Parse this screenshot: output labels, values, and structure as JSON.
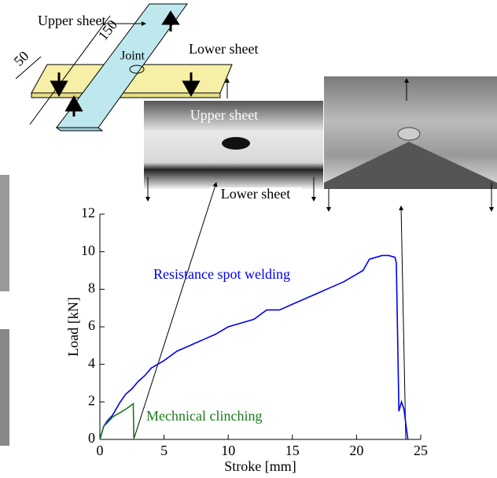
{
  "chart_data": {
    "type": "line",
    "xlabel": "Stroke [mm]",
    "ylabel": "Load [kN]",
    "xlim": [
      0,
      25
    ],
    "ylim": [
      0,
      12
    ],
    "xticks": [
      0,
      5,
      10,
      15,
      20,
      25
    ],
    "yticks": [
      0,
      2,
      4,
      6,
      8,
      10,
      12
    ],
    "series": [
      {
        "name": "Resistance spot welding",
        "color": "#0000ee",
        "x": [
          0,
          0.3,
          0.6,
          1,
          1.5,
          2,
          2.5,
          3,
          3.5,
          4,
          5,
          6,
          7,
          8,
          9,
          10,
          11,
          12,
          13,
          14,
          15,
          16,
          17,
          18,
          19,
          20,
          20.5,
          21,
          21.5,
          22,
          22.5,
          23,
          23.1,
          23.3,
          23.5,
          23.7,
          23.9,
          24
        ],
        "values": [
          0,
          0.7,
          1.0,
          1.3,
          1.9,
          2.4,
          2.7,
          3.1,
          3.4,
          3.8,
          4.2,
          4.7,
          5.0,
          5.3,
          5.6,
          6.0,
          6.2,
          6.4,
          6.9,
          6.9,
          7.2,
          7.5,
          7.8,
          8.1,
          8.4,
          8.8,
          9.0,
          9.6,
          9.7,
          9.8,
          9.8,
          9.7,
          9.4,
          1.5,
          2.0,
          1.6,
          0.5,
          0
        ]
      },
      {
        "name": "Mechnical clinching",
        "color": "#1a7a1a",
        "x": [
          0,
          0.3,
          0.6,
          1,
          1.5,
          2,
          2.4,
          2.6,
          2.65
        ],
        "values": [
          0,
          0.7,
          0.9,
          1.2,
          1.4,
          1.6,
          1.8,
          1.9,
          0
        ]
      }
    ]
  },
  "diagram": {
    "upper_sheet": "Upper sheet",
    "lower_sheet": "Lower sheet",
    "length": "150",
    "width": "50",
    "joint": "Joint",
    "photo_upper": "Upper sheet",
    "photo_lower": "Lower sheet"
  }
}
